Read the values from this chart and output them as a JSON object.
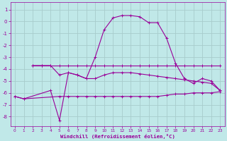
{
  "background_color": "#c0e8e8",
  "grid_color": "#a8cccc",
  "line_color": "#990099",
  "xlabel": "Windchill (Refroidissement éolien,°C)",
  "xlim": [
    -0.5,
    23.5
  ],
  "ylim": [
    -8.8,
    1.6
  ],
  "yticks": [
    1,
    0,
    -1,
    -2,
    -3,
    -4,
    -5,
    -6,
    -7,
    -8
  ],
  "xticks": [
    0,
    1,
    2,
    3,
    4,
    5,
    6,
    7,
    8,
    9,
    10,
    11,
    12,
    13,
    14,
    15,
    16,
    17,
    18,
    19,
    20,
    21,
    22,
    23
  ],
  "series": [
    {
      "x": [
        0,
        1,
        5,
        6,
        7,
        8,
        9,
        10,
        11,
        12,
        13,
        14,
        15,
        16,
        17,
        18,
        19,
        20,
        21,
        22,
        23
      ],
      "y": [
        -6.3,
        -6.5,
        -6.3,
        -6.3,
        -6.3,
        -6.3,
        -6.3,
        -6.3,
        -6.3,
        -6.3,
        -6.3,
        -6.3,
        -6.3,
        -6.3,
        -6.2,
        -6.1,
        -6.1,
        -6.0,
        -6.0,
        -6.0,
        -5.9
      ]
    },
    {
      "x": [
        0,
        1,
        4,
        5,
        6,
        7,
        8,
        9,
        10,
        11,
        12,
        13,
        14,
        15,
        16,
        17,
        18,
        19,
        20,
        21,
        22,
        23
      ],
      "y": [
        -6.3,
        -6.5,
        -5.8,
        -8.3,
        -4.3,
        -4.5,
        -4.8,
        -3.0,
        -0.7,
        0.3,
        0.5,
        0.5,
        0.4,
        -0.1,
        -0.1,
        -1.4,
        -3.5,
        -4.8,
        -5.2,
        -4.8,
        -5.0,
        -5.8
      ]
    },
    {
      "x": [
        2,
        3,
        4,
        5,
        6,
        7,
        8,
        9,
        10,
        11,
        12,
        13,
        14,
        15,
        16,
        17,
        18,
        19,
        20,
        21,
        22,
        23
      ],
      "y": [
        -3.7,
        -3.7,
        -3.7,
        -3.7,
        -3.7,
        -3.7,
        -3.7,
        -3.7,
        -3.7,
        -3.7,
        -3.7,
        -3.7,
        -3.7,
        -3.7,
        -3.7,
        -3.7,
        -3.7,
        -3.7,
        -3.7,
        -3.7,
        -3.7,
        -3.7
      ]
    },
    {
      "x": [
        2,
        3,
        4,
        5,
        6,
        7,
        8,
        9,
        10,
        11,
        12,
        13,
        14,
        15,
        16,
        17,
        18,
        19,
        20,
        21,
        22,
        23
      ],
      "y": [
        -3.7,
        -3.7,
        -3.7,
        -4.5,
        -4.3,
        -4.5,
        -4.8,
        -4.8,
        -4.5,
        -4.3,
        -4.3,
        -4.3,
        -4.4,
        -4.5,
        -4.6,
        -4.7,
        -4.8,
        -4.9,
        -5.0,
        -5.1,
        -5.2,
        -5.8
      ]
    }
  ]
}
